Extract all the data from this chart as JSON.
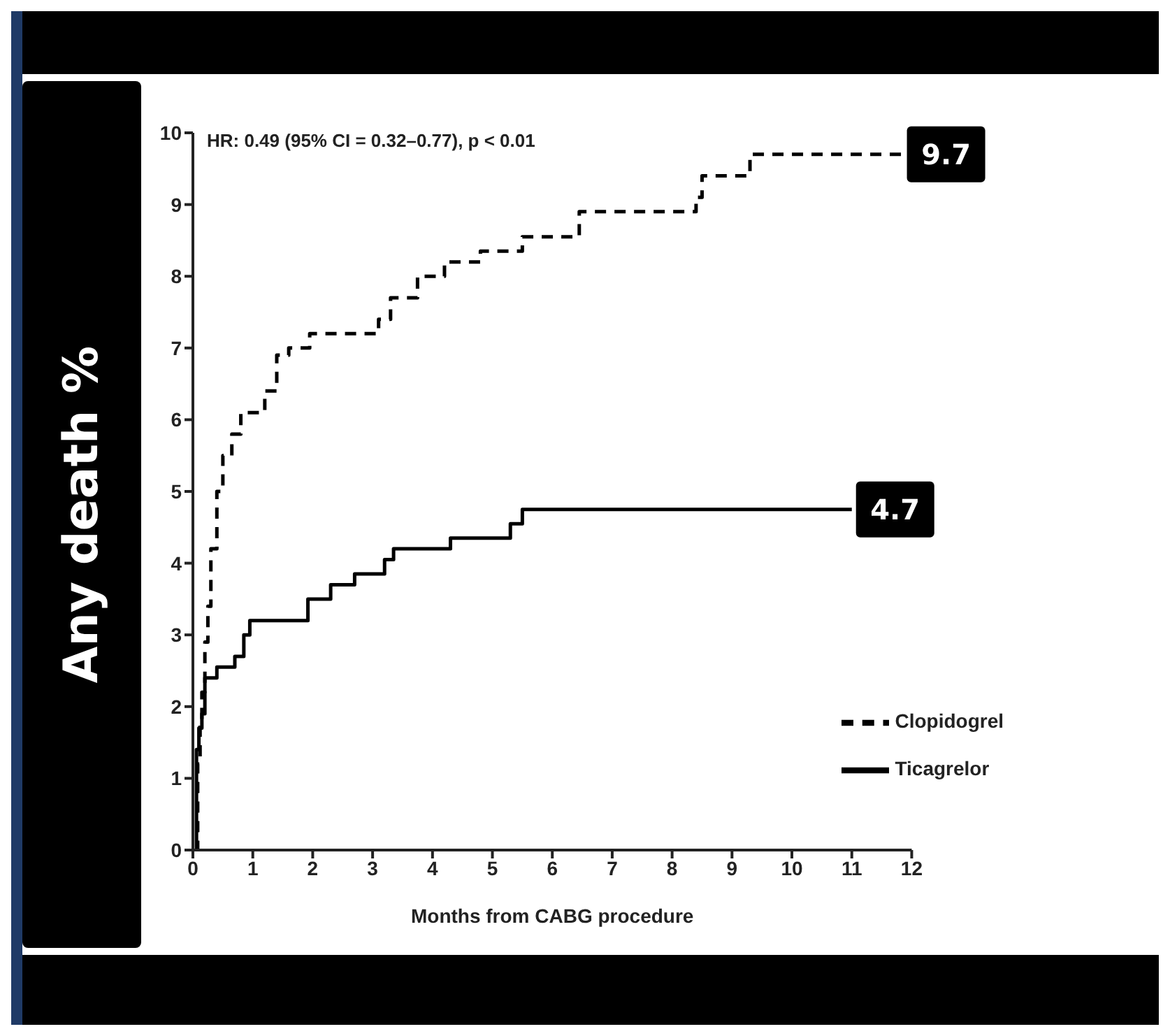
{
  "chart_data": {
    "type": "step",
    "xlabel": "Months from CABG procedure",
    "ylabel": "Any death %",
    "xlim": [
      0,
      12
    ],
    "xticks": [
      0,
      1,
      2,
      3,
      4,
      5,
      6,
      7,
      8,
      9,
      10,
      11,
      12
    ],
    "ylim": [
      0,
      10
    ],
    "yticks": [
      0,
      1,
      2,
      3,
      4,
      5,
      6,
      7,
      8,
      9,
      10
    ],
    "legend": "bottom right",
    "marker": "none",
    "annotations": [
      "HR: 0.49 (95% CI = 0.32–0.77), p < 0.01",
      {
        "text": "9.7",
        "x": 11.85,
        "y": 9.7
      },
      {
        "text": "4.7",
        "x": 11,
        "y": 4.75
      }
    ],
    "series": [
      {
        "name": "Clopidogrel",
        "color": "#000000",
        "line_style": "dashed",
        "x": [
          0.05,
          0.08,
          0.12,
          0.15,
          0.2,
          0.25,
          0.3,
          0.4,
          0.5,
          0.65,
          0.8,
          1.2,
          1.4,
          1.6,
          1.95,
          3.1,
          3.3,
          3.75,
          4.2,
          4.8,
          5.5,
          6.45,
          8.4,
          8.5,
          9.3,
          11.85
        ],
        "values": [
          0,
          1.2,
          1.8,
          2.2,
          2.9,
          3.4,
          4.2,
          5.0,
          5.5,
          5.8,
          6.1,
          6.4,
          6.9,
          7.0,
          7.2,
          7.4,
          7.7,
          8.0,
          8.2,
          8.35,
          8.55,
          8.9,
          9.1,
          9.4,
          9.7,
          9.7
        ]
      },
      {
        "name": "Ticagrelor",
        "color": "#000000",
        "line_style": "solid",
        "x": [
          0.05,
          0.06,
          0.1,
          0.15,
          0.2,
          0.4,
          0.7,
          0.85,
          0.95,
          1.92,
          2.3,
          2.7,
          3.2,
          3.35,
          4.3,
          5.3,
          5.5,
          11
        ],
        "values": [
          0,
          1.4,
          1.7,
          1.9,
          2.4,
          2.55,
          2.7,
          3.0,
          3.2,
          3.5,
          3.7,
          3.85,
          4.05,
          4.2,
          4.35,
          4.55,
          4.75,
          4.75
        ]
      }
    ]
  }
}
